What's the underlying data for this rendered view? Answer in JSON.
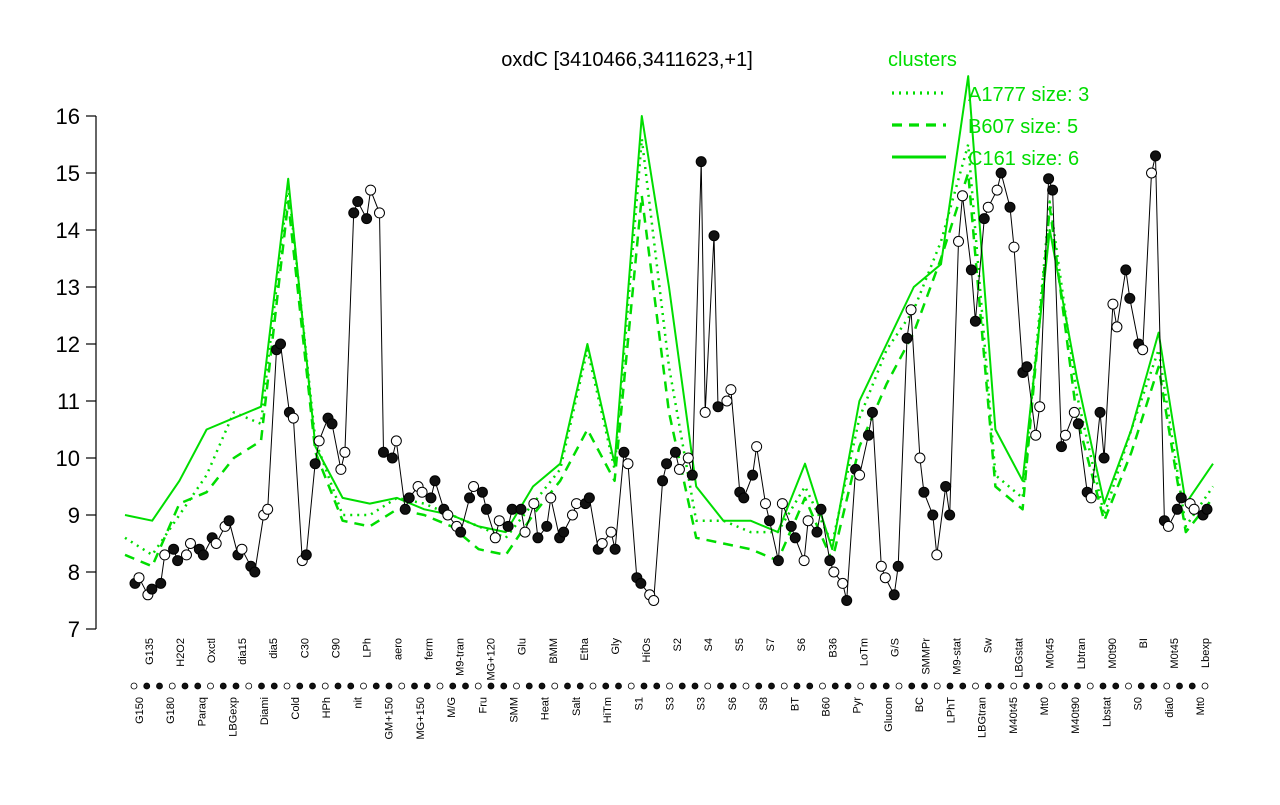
{
  "chart_data": {
    "type": "line",
    "title": "oxdC [3410466,3411623,+1]",
    "xlabel": "",
    "ylabel": "",
    "ylim": [
      7,
      16
    ],
    "yticks": [
      7,
      8,
      9,
      10,
      11,
      12,
      13,
      14,
      15,
      16
    ],
    "grid": false,
    "legend": {
      "title": "clusters",
      "placement": "top-right",
      "entries": [
        "A1777 size: 3",
        "B607 size: 5",
        "C161 size: 6"
      ],
      "styles": [
        "dotted",
        "dashed",
        "solid"
      ]
    },
    "colors": {
      "cluster_lines": "#00dd00",
      "legend_text": "#00dd00",
      "points_dark": "#111111",
      "points_light": "#ffffff",
      "axis": "#000000"
    },
    "bottom_labels": [
      "G150",
      "G180",
      "Paraq",
      "LBGexp",
      "Diami",
      "Cold",
      "HPh",
      "nit",
      "GM+150",
      "MG+150",
      "M/G",
      "Fru",
      "SMM",
      "Heat",
      "Salt",
      "HiTm",
      "S1",
      "S3",
      "S3",
      "S6",
      "S8",
      "BT",
      "B60",
      "Pyr",
      "Glucon",
      "BC",
      "LPhT",
      "LBGtran",
      "M40t45",
      "Mt0",
      "M40t90",
      "Lbstat",
      "S0",
      "dia0",
      "Mt0"
    ],
    "top_labels": [
      "G135",
      "H2O2",
      "Oxctl",
      "dia15",
      "dia5",
      "C30",
      "C90",
      "LPh",
      "aero",
      "ferm",
      "M9-tran",
      "MG+120",
      "Glu",
      "BMM",
      "Etha",
      "Gly",
      "HiOs",
      "S2",
      "S4",
      "S5",
      "S7",
      "S6",
      "B36",
      "LoTm",
      "G/S",
      "SMMPr",
      "M9-stat",
      "Sw",
      "LBGstat",
      "M0t45",
      "Lbtran",
      "M0t90",
      "BI",
      "M0t45",
      "Lbexp"
    ],
    "series_points": [
      [
        7.8,
        7.9
      ],
      [
        7.6,
        7.7
      ],
      [
        7.8,
        8.3
      ],
      [
        8.4,
        8.2
      ],
      [
        8.3,
        8.5
      ],
      [
        8.4,
        8.3
      ],
      [
        8.6,
        8.5
      ],
      [
        8.8,
        8.9
      ],
      [
        8.3,
        8.4
      ],
      [
        8.1,
        8.0
      ],
      [
        9.0,
        9.1
      ],
      [
        11.9,
        12.0
      ],
      [
        10.8,
        10.7
      ],
      [
        8.2,
        8.3
      ],
      [
        9.9,
        10.3
      ],
      [
        10.7,
        10.6
      ],
      [
        9.8,
        10.1
      ],
      [
        14.3,
        14.5
      ],
      [
        14.2,
        14.7
      ],
      [
        14.3,
        10.1
      ],
      [
        10.0,
        10.3
      ],
      [
        9.1,
        9.3
      ],
      [
        9.5,
        9.4
      ],
      [
        9.3,
        9.6
      ],
      [
        9.1,
        9.0
      ],
      [
        8.8,
        8.7
      ],
      [
        9.3,
        9.5
      ],
      [
        9.4,
        9.1
      ],
      [
        8.6,
        8.9
      ],
      [
        8.8,
        9.1
      ],
      [
        9.1,
        8.7
      ],
      [
        9.2,
        8.6
      ],
      [
        8.8,
        9.3
      ],
      [
        8.6,
        8.7
      ],
      [
        9.0,
        9.2
      ],
      [
        9.2,
        9.3
      ],
      [
        8.4,
        8.5
      ],
      [
        8.7,
        8.4
      ],
      [
        10.1,
        9.9
      ],
      [
        7.9,
        7.8
      ],
      [
        7.6,
        7.5
      ],
      [
        9.6,
        9.9
      ],
      [
        10.1,
        9.8
      ],
      [
        10.0,
        9.7
      ],
      [
        15.2,
        10.8
      ],
      [
        13.9,
        10.9
      ],
      [
        11.0,
        11.2
      ],
      [
        9.4,
        9.3
      ],
      [
        9.7,
        10.2
      ],
      [
        9.2,
        8.9
      ],
      [
        8.2,
        9.2
      ],
      [
        8.8,
        8.6
      ],
      [
        8.2,
        8.9
      ],
      [
        8.7,
        9.1
      ],
      [
        8.2,
        8.0
      ],
      [
        7.8,
        7.5
      ],
      [
        9.8,
        9.7
      ],
      [
        10.4,
        10.8
      ],
      [
        8.1,
        7.9
      ],
      [
        7.6,
        8.1
      ],
      [
        12.1,
        12.6
      ],
      [
        10.0,
        9.4
      ],
      [
        9.0,
        8.3
      ],
      [
        9.5,
        9.0
      ],
      [
        13.8,
        14.6
      ],
      [
        13.3,
        12.4
      ],
      [
        14.2,
        14.4
      ],
      [
        14.7,
        15.0
      ],
      [
        14.4,
        13.7
      ],
      [
        11.5,
        11.6
      ],
      [
        10.4,
        10.9
      ],
      [
        14.9,
        14.7
      ],
      [
        10.2,
        10.4
      ],
      [
        10.8,
        10.6
      ],
      [
        9.4,
        9.3
      ],
      [
        10.8,
        10.0
      ],
      [
        12.7,
        12.3
      ],
      [
        13.3,
        12.8
      ],
      [
        12.0,
        11.9
      ],
      [
        15.0,
        15.3
      ],
      [
        8.9,
        8.8
      ],
      [
        9.1,
        9.3
      ],
      [
        9.2,
        9.1
      ],
      [
        9.0,
        9.1
      ]
    ],
    "cluster_values": {
      "A1777 size: 3": [
        8.6,
        8.3,
        9.0,
        9.7,
        10.8,
        10.6,
        14.8,
        10.3,
        9.0,
        9.0,
        9.3,
        9.2,
        9.0,
        8.8,
        8.6,
        9.2,
        9.8,
        11.9,
        9.8,
        15.6,
        11.6,
        8.9,
        8.9,
        8.7,
        8.7,
        9.5,
        8.5,
        10.7,
        11.9,
        12.6,
        13.8,
        15.5,
        9.7,
        9.3,
        14.5,
        11.1,
        9.0,
        10.5,
        11.9,
        8.8,
        9.5
      ],
      "B607 size: 5": [
        8.3,
        8.1,
        9.2,
        9.4,
        10.0,
        10.3,
        14.5,
        10.1,
        8.9,
        8.8,
        9.1,
        9.0,
        8.8,
        8.4,
        8.3,
        9.0,
        9.6,
        10.5,
        9.6,
        14.6,
        10.8,
        8.6,
        8.5,
        8.4,
        8.2,
        9.3,
        8.2,
        10.2,
        11.3,
        12.2,
        13.5,
        15.0,
        9.5,
        9.1,
        14.4,
        10.7,
        8.9,
        10.1,
        11.6,
        8.7,
        9.3
      ],
      "C161 size: 6": [
        9.0,
        8.9,
        9.6,
        10.5,
        10.7,
        10.9,
        14.9,
        10.2,
        9.3,
        9.2,
        9.3,
        9.1,
        9.0,
        8.8,
        8.7,
        9.5,
        9.9,
        12.0,
        9.9,
        16.0,
        13.0,
        9.5,
        8.9,
        8.9,
        8.7,
        9.9,
        8.4,
        11.0,
        12.0,
        13.0,
        13.4,
        16.7,
        10.5,
        9.6,
        14.0,
        11.4,
        9.2,
        10.5,
        12.2,
        9.2,
        9.9
      ]
    }
  }
}
